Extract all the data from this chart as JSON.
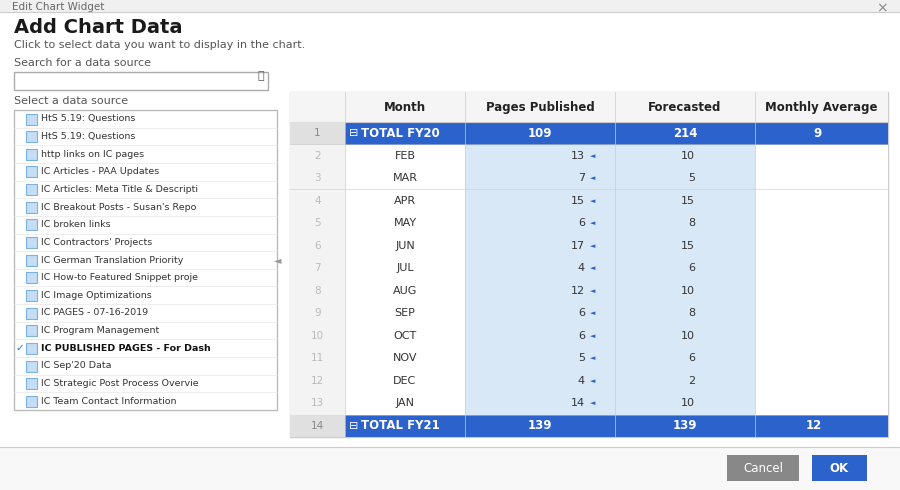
{
  "title": "Add Chart Data",
  "subtitle": "Click to select data you want to display in the chart.",
  "search_label": "Search for a data source",
  "select_label": "Select a data source",
  "list_items": [
    {
      "text": "HtS 5.19: Questions",
      "selected": false,
      "bold": false
    },
    {
      "text": "HtS 5.19: Questions",
      "selected": false,
      "bold": false
    },
    {
      "text": "http links on IC pages",
      "selected": false,
      "bold": false
    },
    {
      "text": "IC Articles - PAA Updates",
      "selected": false,
      "bold": false
    },
    {
      "text": "IC Articles: Meta Title & Descripti",
      "selected": false,
      "bold": false
    },
    {
      "text": "IC Breakout Posts - Susan's Repo",
      "selected": false,
      "bold": false
    },
    {
      "text": "IC broken links",
      "selected": false,
      "bold": false
    },
    {
      "text": "IC Contractors' Projects",
      "selected": false,
      "bold": false
    },
    {
      "text": "IC German Translation Priority",
      "selected": false,
      "bold": false
    },
    {
      "text": "IC How-to Featured Snippet proje",
      "selected": false,
      "bold": false
    },
    {
      "text": "IC Image Optimizations",
      "selected": false,
      "bold": false
    },
    {
      "text": "IC PAGES - 07-16-2019",
      "selected": false,
      "bold": false
    },
    {
      "text": "IC Program Management",
      "selected": false,
      "bold": false
    },
    {
      "text": "IC PUBLISHED PAGES - For Dash",
      "selected": true,
      "bold": true
    },
    {
      "text": "IC Sep'20 Data",
      "selected": false,
      "bold": false
    },
    {
      "text": "IC Strategic Post Process Overvie",
      "selected": false,
      "bold": false
    },
    {
      "text": "IC Team Contact Information",
      "selected": false,
      "bold": false
    }
  ],
  "table_headers": [
    "",
    "Month",
    "Pages Published",
    "Forecasted",
    "Monthly Average"
  ],
  "table_rows": [
    {
      "row_num": "1",
      "month": "TOTAL FY20",
      "pages": "109",
      "forecasted": "214",
      "monthly_avg": "9",
      "is_total": true
    },
    {
      "row_num": "2",
      "month": "FEB",
      "pages": "13",
      "forecasted": "10",
      "monthly_avg": "",
      "is_total": false
    },
    {
      "row_num": "3",
      "month": "MAR",
      "pages": "7",
      "forecasted": "5",
      "monthly_avg": "",
      "is_total": false
    },
    {
      "row_num": "4",
      "month": "APR",
      "pages": "15",
      "forecasted": "15",
      "monthly_avg": "",
      "is_total": false
    },
    {
      "row_num": "5",
      "month": "MAY",
      "pages": "6",
      "forecasted": "8",
      "monthly_avg": "",
      "is_total": false
    },
    {
      "row_num": "6",
      "month": "JUN",
      "pages": "17",
      "forecasted": "15",
      "monthly_avg": "",
      "is_total": false
    },
    {
      "row_num": "7",
      "month": "JUL",
      "pages": "4",
      "forecasted": "6",
      "monthly_avg": "",
      "is_total": false
    },
    {
      "row_num": "8",
      "month": "AUG",
      "pages": "12",
      "forecasted": "10",
      "monthly_avg": "",
      "is_total": false
    },
    {
      "row_num": "9",
      "month": "SEP",
      "pages": "6",
      "forecasted": "8",
      "monthly_avg": "",
      "is_total": false
    },
    {
      "row_num": "10",
      "month": "OCT",
      "pages": "6",
      "forecasted": "10",
      "monthly_avg": "",
      "is_total": false
    },
    {
      "row_num": "11",
      "month": "NOV",
      "pages": "5",
      "forecasted": "6",
      "monthly_avg": "",
      "is_total": false
    },
    {
      "row_num": "12",
      "month": "DEC",
      "pages": "4",
      "forecasted": "2",
      "monthly_avg": "",
      "is_total": false
    },
    {
      "row_num": "13",
      "month": "JAN",
      "pages": "14",
      "forecasted": "10",
      "monthly_avg": "",
      "is_total": false
    },
    {
      "row_num": "14",
      "month": "TOTAL FY21",
      "pages": "139",
      "forecasted": "139",
      "monthly_avg": "12",
      "is_total": true
    }
  ],
  "colors": {
    "background": "#f0f0f0",
    "dialog_bg": "#ffffff",
    "blue_row": "#2b62cc",
    "blue_row_text": "#ffffff",
    "light_blue_cell": "#d9e8f7",
    "month_col_bg": "#eef4fb",
    "cell_text": "#333333",
    "row_num_text": "#aaaaaa",
    "border": "#cccccc",
    "title_text": "#1a1a1a",
    "subtitle_text": "#555555",
    "search_border": "#aaaaaa",
    "list_border": "#bbbbbb",
    "list_bg": "#ffffff",
    "checkmark_color": "#2b62cc",
    "cancel_btn_bg": "#888888",
    "ok_btn_bg": "#2b62cc",
    "btn_text": "#ffffff",
    "icon_border": "#7ab3e0",
    "icon_fill": "#c5ddf5",
    "top_bar_bg": "#f0f0f0",
    "top_bar_text": "#666666",
    "close_x": "#888888",
    "hdr_border_top": "#2b62cc",
    "tbl_header_bg": "#f5f5f5"
  }
}
